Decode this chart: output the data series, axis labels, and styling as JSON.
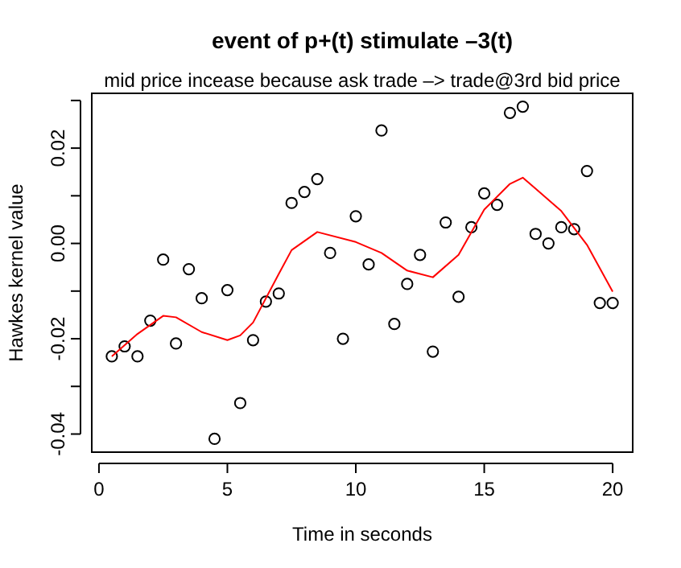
{
  "chart_data": {
    "type": "scatter",
    "title": "event of p+(t) stimulate –3(t)",
    "subtitle": "mid price incease because ask trade –> trade@3rd bid price",
    "xlabel": "Time in seconds",
    "ylabel": "Hawkes kernel value",
    "xlim": [
      -0.28,
      20.78
    ],
    "ylim": [
      -0.0438,
      0.0315
    ],
    "xticks": [
      0,
      5,
      10,
      15,
      20
    ],
    "yticks": [
      {
        "value": -0.04,
        "label": "-0.04"
      },
      {
        "value": -0.03,
        "label": null
      },
      {
        "value": -0.02,
        "label": "-0.02"
      },
      {
        "value": -0.01,
        "label": null
      },
      {
        "value": 0,
        "label": "0.00"
      },
      {
        "value": 0.01,
        "label": null
      },
      {
        "value": 0.02,
        "label": "0.02"
      },
      {
        "value": 0.03,
        "label": null
      }
    ],
    "grid": false,
    "series": [
      {
        "marker": "circle",
        "color": "#000000",
        "x": [
          0.5,
          1,
          1.5,
          2,
          2.5,
          3,
          3.5,
          4,
          4.5,
          5,
          5.5,
          6,
          6.5,
          7,
          7.5,
          8,
          8.5,
          9,
          9.5,
          10,
          10.5,
          11,
          11.5,
          12,
          12.5,
          13,
          13.5,
          14,
          14.5,
          15,
          15.5,
          16,
          16.5,
          17,
          17.5,
          18,
          18.5,
          19,
          19.5,
          20
        ],
        "values": [
          -0.0237,
          -0.0216,
          -0.0237,
          -0.0162,
          -0.0034,
          -0.021,
          -0.0054,
          -0.0115,
          -0.041,
          -0.0098,
          -0.0335,
          -0.0203,
          -0.0122,
          -0.0105,
          0.0085,
          0.0108,
          0.0135,
          -0.002,
          -0.02,
          0.0057,
          -0.0044,
          0.0237,
          -0.0169,
          -0.0085,
          -0.0024,
          -0.0227,
          0.0044,
          -0.0112,
          0.0034,
          0.0105,
          0.0081,
          0.0274,
          0.0287,
          0.002,
          0,
          0.0034,
          0.003,
          0.0152,
          -0.0125,
          -0.0125
        ]
      },
      {
        "type": "line",
        "line_style": "solid",
        "color": "#ff0000",
        "x": [
          0.5,
          1.5,
          2.5,
          3,
          4,
          5,
          5.5,
          6,
          7,
          7.5,
          8.5,
          10,
          11,
          12,
          13,
          14,
          15,
          16,
          16.5,
          17,
          18,
          19,
          20
        ],
        "values": [
          -0.0237,
          -0.019,
          -0.0152,
          -0.0155,
          -0.0186,
          -0.0203,
          -0.0193,
          -0.0166,
          -0.0064,
          -0.0014,
          0.0024,
          0.0003,
          -0.002,
          -0.0057,
          -0.0071,
          -0.0024,
          0.0071,
          0.0125,
          0.0138,
          0.0115,
          0.0068,
          -0.0003,
          -0.0101
        ]
      }
    ]
  }
}
